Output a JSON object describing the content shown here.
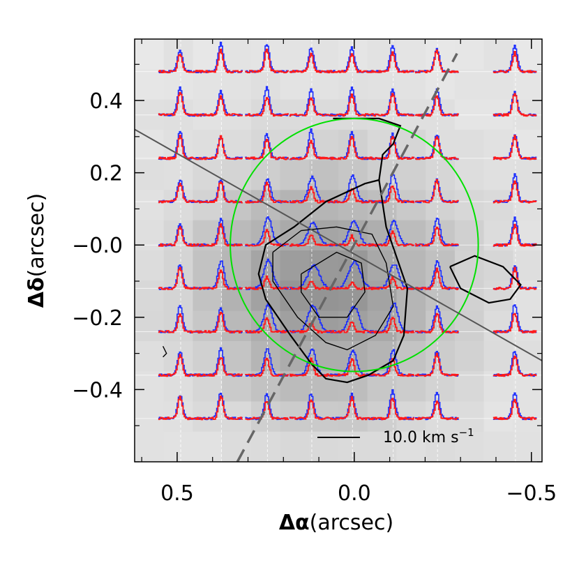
{
  "chart_data": {
    "type": "scatter",
    "description_type": "spectral-line-grid",
    "xlabel_symbol": "Δα",
    "xlabel_unit": "(arcsec)",
    "ylabel_symbol": "Δδ",
    "ylabel_unit": "(arcsec)",
    "xlim": [
      0.62,
      -0.53
    ],
    "ylim": [
      -0.6,
      0.57
    ],
    "x_ticks": [
      {
        "value": 0.5,
        "label": "0.5"
      },
      {
        "value": 0.0,
        "label": "0.0"
      },
      {
        "value": -0.5,
        "label": "−0.5"
      }
    ],
    "y_ticks": [
      {
        "value": 0.4,
        "label": "0.4"
      },
      {
        "value": 0.2,
        "label": "0.2"
      },
      {
        "value": 0.0,
        "label": "−0.0"
      },
      {
        "value": -0.2,
        "label": "−0.2"
      },
      {
        "value": -0.4,
        "label": "−0.4"
      }
    ],
    "grid_x": [
      0.49,
      0.375,
      0.245,
      0.12,
      0.005,
      -0.11,
      -0.235,
      -0.455
    ],
    "grid_y": [
      0.48,
      0.36,
      0.24,
      0.12,
      0.0,
      -0.12,
      -0.24,
      -0.36,
      -0.48
    ],
    "spectrum_half_width": 0.06,
    "spectrum_peak_height": 0.08,
    "circle": {
      "center": [
        0.0,
        0.0
      ],
      "radius": 0.35,
      "color": "#00e000"
    },
    "solid_line": {
      "from": [
        0.62,
        0.32
      ],
      "to": [
        -0.53,
        -0.32
      ],
      "color": "#555555"
    },
    "dashed_line": {
      "from": [
        0.33,
        -0.6
      ],
      "to": [
        -0.29,
        0.53
      ],
      "color": "#666666"
    },
    "contours": [
      [
        [
          0.06,
          0.35
        ],
        [
          -0.07,
          0.35
        ],
        [
          -0.13,
          0.33
        ],
        [
          -0.11,
          0.28
        ],
        [
          -0.08,
          0.25
        ],
        [
          -0.07,
          0.18
        ],
        [
          -0.09,
          0.05
        ],
        [
          -0.15,
          -0.12
        ],
        [
          -0.14,
          -0.25
        ],
        [
          -0.11,
          -0.32
        ],
        [
          -0.04,
          -0.36
        ],
        [
          0.02,
          -0.38
        ],
        [
          0.08,
          -0.37
        ],
        [
          0.12,
          -0.33
        ],
        [
          0.18,
          -0.25
        ],
        [
          0.25,
          -0.15
        ],
        [
          0.27,
          -0.08
        ],
        [
          0.25,
          0.0
        ],
        [
          0.17,
          0.05
        ],
        [
          0.08,
          0.12
        ],
        [
          -0.03,
          0.17
        ],
        [
          -0.07,
          0.18
        ]
      ],
      [
        [
          0.23,
          -0.02
        ],
        [
          0.15,
          0.04
        ],
        [
          0.05,
          0.05
        ],
        [
          -0.05,
          0.03
        ],
        [
          -0.09,
          -0.05
        ],
        [
          -0.11,
          -0.17
        ],
        [
          -0.06,
          -0.25
        ],
        [
          0.02,
          -0.29
        ],
        [
          0.08,
          -0.27
        ],
        [
          0.16,
          -0.2
        ],
        [
          0.23,
          -0.1
        ],
        [
          0.23,
          -0.02
        ]
      ],
      [
        [
          0.15,
          -0.08
        ],
        [
          0.05,
          -0.02
        ],
        [
          -0.02,
          -0.05
        ],
        [
          -0.03,
          -0.13
        ],
        [
          0.02,
          -0.2
        ],
        [
          0.1,
          -0.2
        ],
        [
          0.15,
          -0.13
        ],
        [
          0.15,
          -0.08
        ]
      ],
      [
        [
          -0.27,
          -0.06
        ],
        [
          -0.34,
          -0.03
        ],
        [
          -0.42,
          -0.06
        ],
        [
          -0.47,
          -0.11
        ],
        [
          -0.44,
          -0.15
        ],
        [
          -0.38,
          -0.16
        ],
        [
          -0.3,
          -0.12
        ],
        [
          -0.27,
          -0.06
        ]
      ],
      [
        [
          0.54,
          -0.28
        ],
        [
          0.53,
          -0.3
        ],
        [
          0.54,
          -0.31
        ]
      ]
    ],
    "scale_bar": {
      "label": "10.0 km s",
      "superscript": "−1"
    },
    "series": [
      {
        "color": "#1a2cff"
      },
      {
        "color": "#ff1a1a"
      }
    ]
  }
}
